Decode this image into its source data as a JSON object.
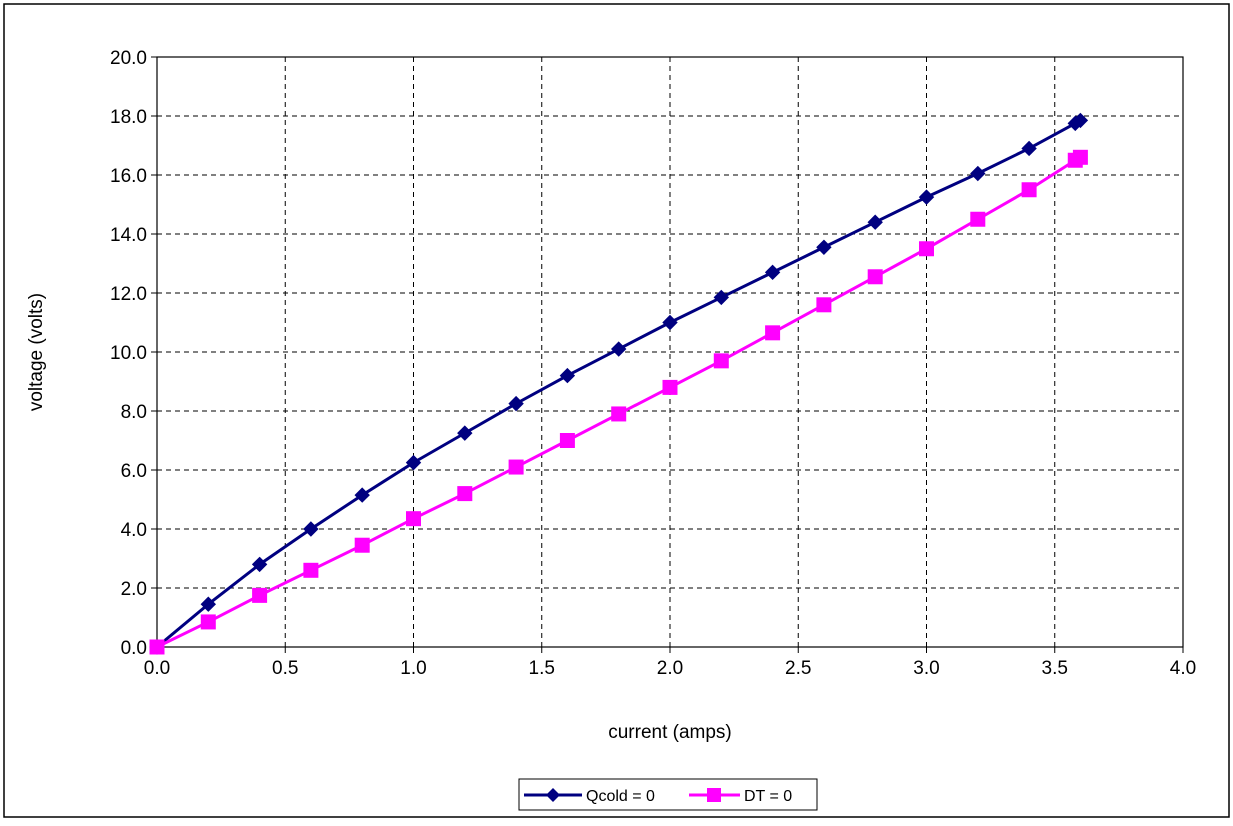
{
  "chart_data": {
    "type": "line",
    "title": "",
    "xlabel": "current (amps)",
    "ylabel": "voltage (volts)",
    "xlim": [
      0,
      4
    ],
    "ylim": [
      0,
      20
    ],
    "x_ticks": [
      "0.0",
      "0.5",
      "1.0",
      "1.5",
      "2.0",
      "2.5",
      "3.0",
      "3.5",
      "4.0"
    ],
    "y_ticks": [
      "0.0",
      "2.0",
      "4.0",
      "6.0",
      "8.0",
      "10.0",
      "12.0",
      "14.0",
      "16.0",
      "18.0",
      "20.0"
    ],
    "grid": true,
    "legend_position": "bottom-center",
    "series": [
      {
        "name": "Qcold = 0",
        "color": "#000080",
        "marker": "diamond",
        "x": [
          0,
          0.2,
          0.4,
          0.6,
          0.8,
          1.0,
          1.2,
          1.4,
          1.6,
          1.8,
          2.0,
          2.2,
          2.4,
          2.6,
          2.8,
          3.0,
          3.2,
          3.4,
          3.58,
          3.6
        ],
        "values": [
          0,
          1.45,
          2.8,
          4.0,
          5.15,
          6.25,
          7.25,
          8.25,
          9.2,
          10.1,
          11.0,
          11.85,
          12.7,
          13.55,
          14.4,
          15.25,
          16.05,
          16.9,
          17.75,
          17.85
        ]
      },
      {
        "name": "DT = 0",
        "color": "#FF00FF",
        "marker": "square",
        "x": [
          0,
          0.2,
          0.4,
          0.6,
          0.8,
          1.0,
          1.2,
          1.4,
          1.6,
          1.8,
          2.0,
          2.2,
          2.4,
          2.6,
          2.8,
          3.0,
          3.2,
          3.4,
          3.58,
          3.6
        ],
        "values": [
          0,
          0.85,
          1.75,
          2.6,
          3.45,
          4.35,
          5.2,
          6.1,
          7.0,
          7.9,
          8.8,
          9.7,
          10.65,
          11.6,
          12.55,
          13.5,
          14.5,
          15.5,
          16.5,
          16.6
        ]
      }
    ]
  }
}
